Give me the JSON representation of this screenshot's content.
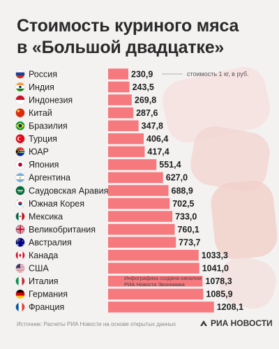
{
  "header": {
    "title_line1": "Стоимость куриного мяса",
    "title_line2": "в «Большой двадцатке»"
  },
  "footer": {
    "source": "Источник: Расчеты РИА Новости на основе открытых данных",
    "brand": "РИА НОВОСТИ",
    "brand_icon": "ria-logo-icon"
  },
  "colors": {
    "bar": "#f6797e",
    "text": "#1e1e1e",
    "background": "#f4f2f1"
  },
  "chart_data": {
    "type": "bar",
    "orientation": "horizontal",
    "annotation": "стоимость 1 кг, в руб.",
    "note": [
      "Инфографика создана каналом",
      "РИА Новости Экономика"
    ],
    "categories": [
      "Россия",
      "Индия",
      "Индонезия",
      "Китай",
      "Бразилия",
      "Турция",
      "ЮАР",
      "Япония",
      "Аргентина",
      "Саудовская Аравия",
      "Южная Корея",
      "Мексика",
      "Великобритания",
      "Австралия",
      "Канада",
      "США",
      "Италия",
      "Германия",
      "Франция"
    ],
    "values": [
      230.9,
      243.5,
      269.8,
      287.6,
      347.8,
      406.4,
      417.4,
      551.4,
      627.0,
      688.9,
      702.5,
      733.0,
      760.1,
      773.7,
      1033.3,
      1041.0,
      1078.3,
      1085.9,
      1208.1
    ],
    "value_labels": [
      "230,9",
      "243,5",
      "269,8",
      "287,6",
      "347,8",
      "406,4",
      "417,4",
      "551,4",
      "627,0",
      "688,9",
      "702,5",
      "733,0",
      "760,1",
      "773,7",
      "1033,3",
      "1041,0",
      "1078,3",
      "1085,9",
      "1208,1"
    ],
    "flag_icons": [
      "flag-russia-icon",
      "flag-india-icon",
      "flag-indonesia-icon",
      "flag-china-icon",
      "flag-brazil-icon",
      "flag-turkey-icon",
      "flag-south-africa-icon",
      "flag-japan-icon",
      "flag-argentina-icon",
      "flag-saudi-arabia-icon",
      "flag-south-korea-icon",
      "flag-mexico-icon",
      "flag-uk-icon",
      "flag-australia-icon",
      "flag-canada-icon",
      "flag-usa-icon",
      "flag-italy-icon",
      "flag-germany-icon",
      "flag-france-icon"
    ]
  }
}
